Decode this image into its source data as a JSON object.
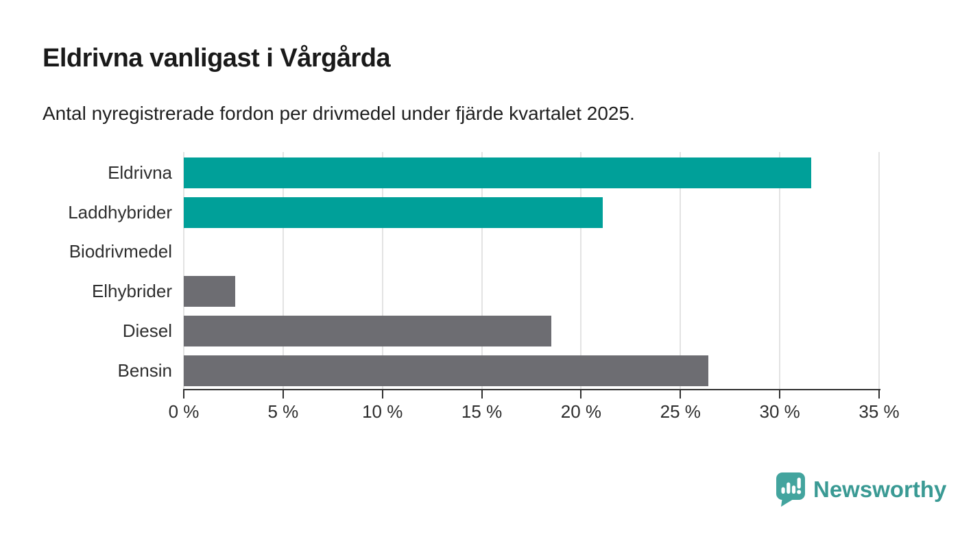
{
  "header": {
    "title": "Eldrivna vanligast i Vårgårda",
    "subtitle": "Antal nyregistrerade fordon per drivmedel under fjärde kvartalet 2025."
  },
  "chart_data": {
    "type": "bar",
    "orientation": "horizontal",
    "title": "Eldrivna vanligast i Vårgårda",
    "subtitle": "Antal nyregistrerade fordon per drivmedel under fjärde kvartalet 2025.",
    "categories": [
      "Eldrivna",
      "Laddhybrider",
      "Biodrivmedel",
      "Elhybrider",
      "Diesel",
      "Bensin"
    ],
    "values": [
      31.6,
      21.1,
      0,
      2.6,
      18.5,
      26.4
    ],
    "unit": "%",
    "xlabel": "",
    "ylabel": "",
    "xlim": [
      0,
      35
    ],
    "x_tick_values": [
      0,
      5,
      10,
      15,
      20,
      25,
      30,
      35
    ],
    "x_tick_labels": [
      "0 %",
      "5 %",
      "10 %",
      "15 %",
      "20 %",
      "25 %",
      "30 %",
      "35 %"
    ],
    "grid": true,
    "legend": false,
    "bar_colors": [
      "#00a099",
      "#00a099",
      "#6d6d72",
      "#6d6d72",
      "#6d6d72",
      "#6d6d72"
    ],
    "highlight_color": "#00a099",
    "default_color": "#6d6d72",
    "gridline_color": "#e3e3e3",
    "axis_color": "#2f2f2f"
  },
  "footer": {
    "brand": "Newsworthy",
    "brand_color": "#3a9a94",
    "icon": "bar-chart-speech-bubble-icon",
    "icon_color": "#43a49e"
  }
}
